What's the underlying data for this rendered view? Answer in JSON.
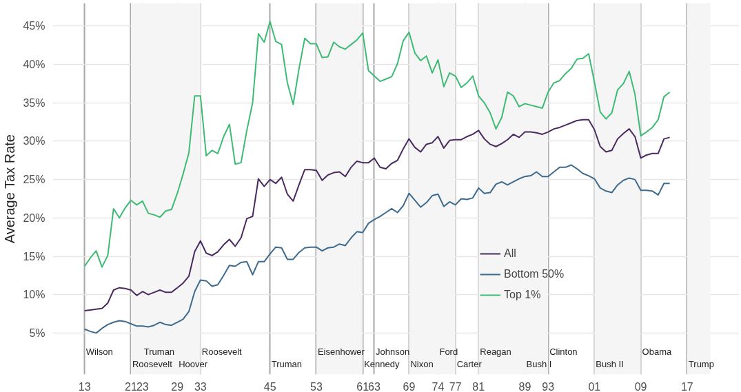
{
  "chart_data": {
    "type": "line",
    "ylabel": "Average Tax Rate",
    "x": [
      1913,
      1914,
      1915,
      1916,
      1917,
      1918,
      1919,
      1920,
      1921,
      1922,
      1923,
      1924,
      1925,
      1926,
      1927,
      1928,
      1929,
      1930,
      1931,
      1932,
      1933,
      1934,
      1935,
      1936,
      1937,
      1938,
      1939,
      1940,
      1941,
      1942,
      1943,
      1944,
      1945,
      1946,
      1947,
      1948,
      1949,
      1950,
      1951,
      1952,
      1953,
      1954,
      1955,
      1956,
      1957,
      1958,
      1959,
      1960,
      1961,
      1962,
      1963,
      1964,
      1965,
      1966,
      1967,
      1968,
      1969,
      1970,
      1971,
      1972,
      1973,
      1974,
      1975,
      1976,
      1977,
      1978,
      1979,
      1980,
      1981,
      1982,
      1983,
      1984,
      1985,
      1986,
      1987,
      1988,
      1989,
      1990,
      1991,
      1992,
      1993,
      1994,
      1995,
      1996,
      1997,
      1998,
      1999,
      2000,
      2001,
      2002,
      2003,
      2004,
      2005,
      2006,
      2007,
      2008,
      2009,
      2010,
      2011,
      2012,
      2013,
      2014
    ],
    "series": [
      {
        "name": "All",
        "color": "#482a60",
        "values": [
          7.9,
          8.0,
          8.1,
          8.2,
          8.9,
          10.6,
          10.9,
          10.8,
          10.6,
          9.9,
          10.4,
          10.0,
          10.3,
          10.6,
          10.3,
          10.3,
          10.9,
          11.5,
          12.4,
          15.6,
          17.0,
          15.4,
          15.1,
          15.6,
          16.5,
          17.2,
          16.3,
          17.4,
          19.9,
          20.2,
          25.1,
          24.1,
          25.0,
          24.5,
          25.3,
          23.1,
          22.2,
          24.3,
          26.3,
          26.3,
          26.2,
          24.9,
          25.6,
          25.9,
          26.0,
          25.4,
          26.6,
          27.4,
          27.2,
          27.2,
          27.8,
          26.6,
          26.4,
          27.1,
          27.5,
          29.0,
          30.3,
          29.2,
          28.6,
          29.6,
          29.8,
          30.6,
          29.1,
          30.1,
          30.2,
          30.2,
          30.6,
          30.9,
          31.4,
          30.3,
          29.6,
          29.3,
          29.7,
          30.2,
          30.9,
          30.5,
          31.2,
          31.2,
          31.1,
          30.9,
          31.2,
          31.6,
          31.8,
          32.1,
          32.4,
          32.7,
          32.8,
          32.8,
          31.5,
          29.3,
          28.6,
          28.8,
          30.3,
          31.0,
          31.6,
          30.6,
          27.8,
          28.2,
          28.4,
          28.4,
          30.3,
          30.5
        ]
      },
      {
        "name": "Bottom 50%",
        "color": "#3e6a8e",
        "values": [
          5.5,
          5.2,
          5.0,
          5.6,
          6.1,
          6.4,
          6.6,
          6.5,
          6.2,
          5.9,
          5.9,
          5.8,
          6.0,
          6.4,
          6.1,
          6.0,
          6.4,
          6.8,
          7.8,
          10.4,
          11.9,
          11.8,
          11.1,
          11.3,
          12.5,
          13.8,
          13.7,
          14.2,
          14.3,
          12.6,
          14.3,
          14.3,
          15.3,
          16.2,
          16.1,
          14.6,
          14.6,
          15.5,
          16.1,
          16.2,
          16.2,
          15.7,
          16.1,
          16.2,
          16.6,
          16.4,
          17.4,
          18.2,
          18.1,
          19.3,
          19.8,
          20.2,
          20.7,
          21.2,
          20.7,
          21.6,
          23.2,
          22.3,
          21.4,
          22.0,
          22.9,
          23.1,
          21.5,
          22.1,
          21.7,
          22.5,
          22.4,
          22.6,
          23.9,
          23.2,
          23.3,
          24.4,
          24.7,
          24.3,
          24.7,
          25.1,
          25.4,
          25.5,
          26.0,
          25.4,
          25.4,
          26.0,
          26.6,
          26.6,
          26.9,
          26.4,
          25.8,
          25.5,
          25.1,
          23.9,
          23.5,
          23.3,
          24.3,
          24.9,
          25.2,
          25.0,
          23.6,
          23.6,
          23.5,
          23.0,
          24.5,
          24.5
        ]
      },
      {
        "name": "Top 1%",
        "color": "#3dba73",
        "values": [
          13.7,
          14.8,
          15.7,
          13.6,
          15.1,
          21.2,
          20.0,
          21.3,
          22.3,
          21.7,
          22.2,
          20.6,
          20.4,
          20.1,
          20.9,
          21.1,
          23.2,
          25.7,
          28.5,
          35.9,
          35.9,
          28.1,
          28.8,
          28.4,
          30.6,
          32.2,
          27.0,
          27.2,
          31.4,
          35.0,
          44.0,
          42.9,
          45.6,
          43.0,
          42.6,
          37.6,
          34.8,
          39.4,
          43.4,
          42.7,
          42.7,
          40.9,
          41.0,
          42.9,
          42.3,
          42.0,
          42.6,
          43.2,
          44.1,
          39.2,
          38.5,
          37.8,
          38.1,
          38.4,
          40.1,
          43.1,
          44.2,
          41.5,
          40.5,
          41.1,
          38.9,
          40.6,
          37.1,
          38.9,
          38.5,
          37.0,
          37.6,
          38.5,
          35.9,
          35.0,
          33.7,
          31.6,
          33.1,
          36.4,
          35.9,
          34.5,
          34.9,
          34.7,
          34.5,
          34.3,
          36.4,
          37.6,
          37.9,
          38.8,
          39.5,
          40.7,
          40.8,
          41.4,
          37.7,
          33.8,
          32.9,
          33.7,
          36.7,
          37.5,
          39.1,
          36.1,
          30.7,
          31.2,
          31.8,
          32.8,
          35.8,
          36.4
        ]
      }
    ],
    "xlim": [
      1907.5,
      2026
    ],
    "ylim": [
      -0.4,
      48
    ],
    "xticks": [
      {
        "value": 1913,
        "label": "13"
      },
      {
        "value": 1921,
        "label": "21"
      },
      {
        "value": 1923,
        "label": "23"
      },
      {
        "value": 1929,
        "label": "29"
      },
      {
        "value": 1933,
        "label": "33"
      },
      {
        "value": 1945,
        "label": "45"
      },
      {
        "value": 1953,
        "label": "53"
      },
      {
        "value": 1961,
        "label": "61"
      },
      {
        "value": 1963,
        "label": "63"
      },
      {
        "value": 1969,
        "label": "69"
      },
      {
        "value": 1974,
        "label": "74"
      },
      {
        "value": 1977,
        "label": "77"
      },
      {
        "value": 1981,
        "label": "81"
      },
      {
        "value": 1989,
        "label": "89"
      },
      {
        "value": 1993,
        "label": "93"
      },
      {
        "value": 2001,
        "label": "01"
      },
      {
        "value": 2009,
        "label": "09"
      },
      {
        "value": 2017,
        "label": "17"
      }
    ],
    "yticks": [
      {
        "value": 5,
        "label": "5%"
      },
      {
        "value": 10,
        "label": "10%"
      },
      {
        "value": 15,
        "label": "15%"
      },
      {
        "value": 20,
        "label": "20%"
      },
      {
        "value": 25,
        "label": "25%"
      },
      {
        "value": 30,
        "label": "30%"
      },
      {
        "value": 35,
        "label": "35%"
      },
      {
        "value": 40,
        "label": "40%"
      },
      {
        "value": 45,
        "label": "45%"
      }
    ],
    "bands": [
      {
        "axis": "x",
        "from": 1921,
        "to": 1933,
        "color": "#f5f5f5"
      },
      {
        "axis": "x",
        "from": 1953,
        "to": 1961,
        "color": "#f5f5f5"
      },
      {
        "axis": "x",
        "from": 1969,
        "to": 1977,
        "color": "#f5f5f5"
      },
      {
        "axis": "x",
        "from": 1981,
        "to": 1993,
        "color": "#f5f5f5"
      },
      {
        "axis": "x",
        "from": 2001,
        "to": 2009,
        "color": "#f5f5f5"
      },
      {
        "axis": "x",
        "from": 2017,
        "to": 2021,
        "color": "#f5f5f5"
      }
    ],
    "annotations": [
      "Wilson",
      "Roosevelt",
      "Truman",
      "Hoover",
      "Roosevelt",
      "Truman",
      "Eisenhower",
      "Kennedy",
      "Johnson",
      "Nixon",
      "Ford",
      "Carter",
      "Reagan",
      "Bush I",
      "Clinton",
      "Bush II",
      "Obama",
      "Trump"
    ],
    "grid": true,
    "legend": "bottom right",
    "line_style": "solid",
    "marker": "none"
  }
}
